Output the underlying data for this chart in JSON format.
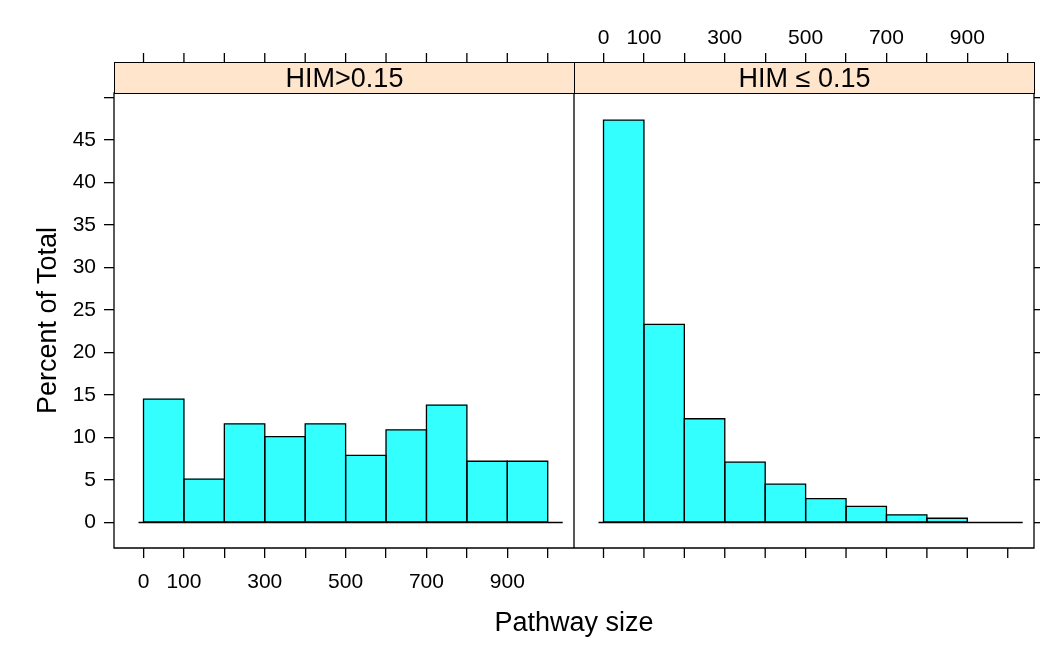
{
  "chart_data": [
    {
      "type": "histogram",
      "title": "HIM>0.15",
      "xlabel": "Pathway size",
      "ylabel": "Percent of Total",
      "color": "#33ffff",
      "bins": [
        0,
        100,
        200,
        300,
        400,
        500,
        600,
        700,
        800,
        900,
        1000
      ],
      "values": [
        14.5,
        5.1,
        11.6,
        10.1,
        11.6,
        7.9,
        10.9,
        13.8,
        7.2,
        7.2
      ],
      "xlim": [
        -73,
        1065
      ],
      "xticks": [
        0,
        100,
        {
          "value": 200,
          "label": null
        },
        300,
        {
          "value": 400,
          "label": null
        },
        500,
        {
          "value": 600,
          "label": null
        },
        700,
        {
          "value": 800,
          "label": null
        },
        900,
        {
          "value": 1000,
          "label": null
        }
      ],
      "ylim": [
        -3,
        50.5
      ],
      "yticks": [
        0,
        5,
        10,
        15,
        20,
        25,
        30,
        35,
        40,
        45,
        {
          "value": 50,
          "label": null
        }
      ],
      "ref_lines": [
        {
          "axis": "y",
          "value": 0,
          "color": "#000000"
        }
      ],
      "grid": false,
      "legend": false
    },
    {
      "type": "histogram",
      "title": "HIM ≤ 0.15",
      "color": "#33ffff",
      "ref_lines": [
        {
          "axis": "y",
          "value": 0,
          "color": "#000000"
        }
      ],
      "bins": [
        0,
        100,
        200,
        300,
        400,
        500,
        600,
        700,
        800,
        900,
        1000
      ],
      "values": [
        47.3,
        23.3,
        12.2,
        7.1,
        4.5,
        2.8,
        1.9,
        0.9,
        0.5,
        0
      ],
      "xlim": [
        -73,
        1065
      ],
      "xticks": [
        0,
        100,
        {
          "value": 200,
          "label": null
        },
        300,
        {
          "value": 400,
          "label": null
        },
        500,
        {
          "value": 600,
          "label": null
        },
        700,
        {
          "value": 800,
          "label": null
        },
        900,
        {
          "value": 1000,
          "label": null
        }
      ],
      "ylim": [
        -3,
        50.5
      ],
      "yticks": [
        0,
        5,
        10,
        15,
        20,
        25,
        30,
        35,
        40,
        45,
        {
          "value": 50,
          "label": null
        }
      ],
      "tick_labels": "x",
      "grid": false,
      "legend": false
    }
  ]
}
